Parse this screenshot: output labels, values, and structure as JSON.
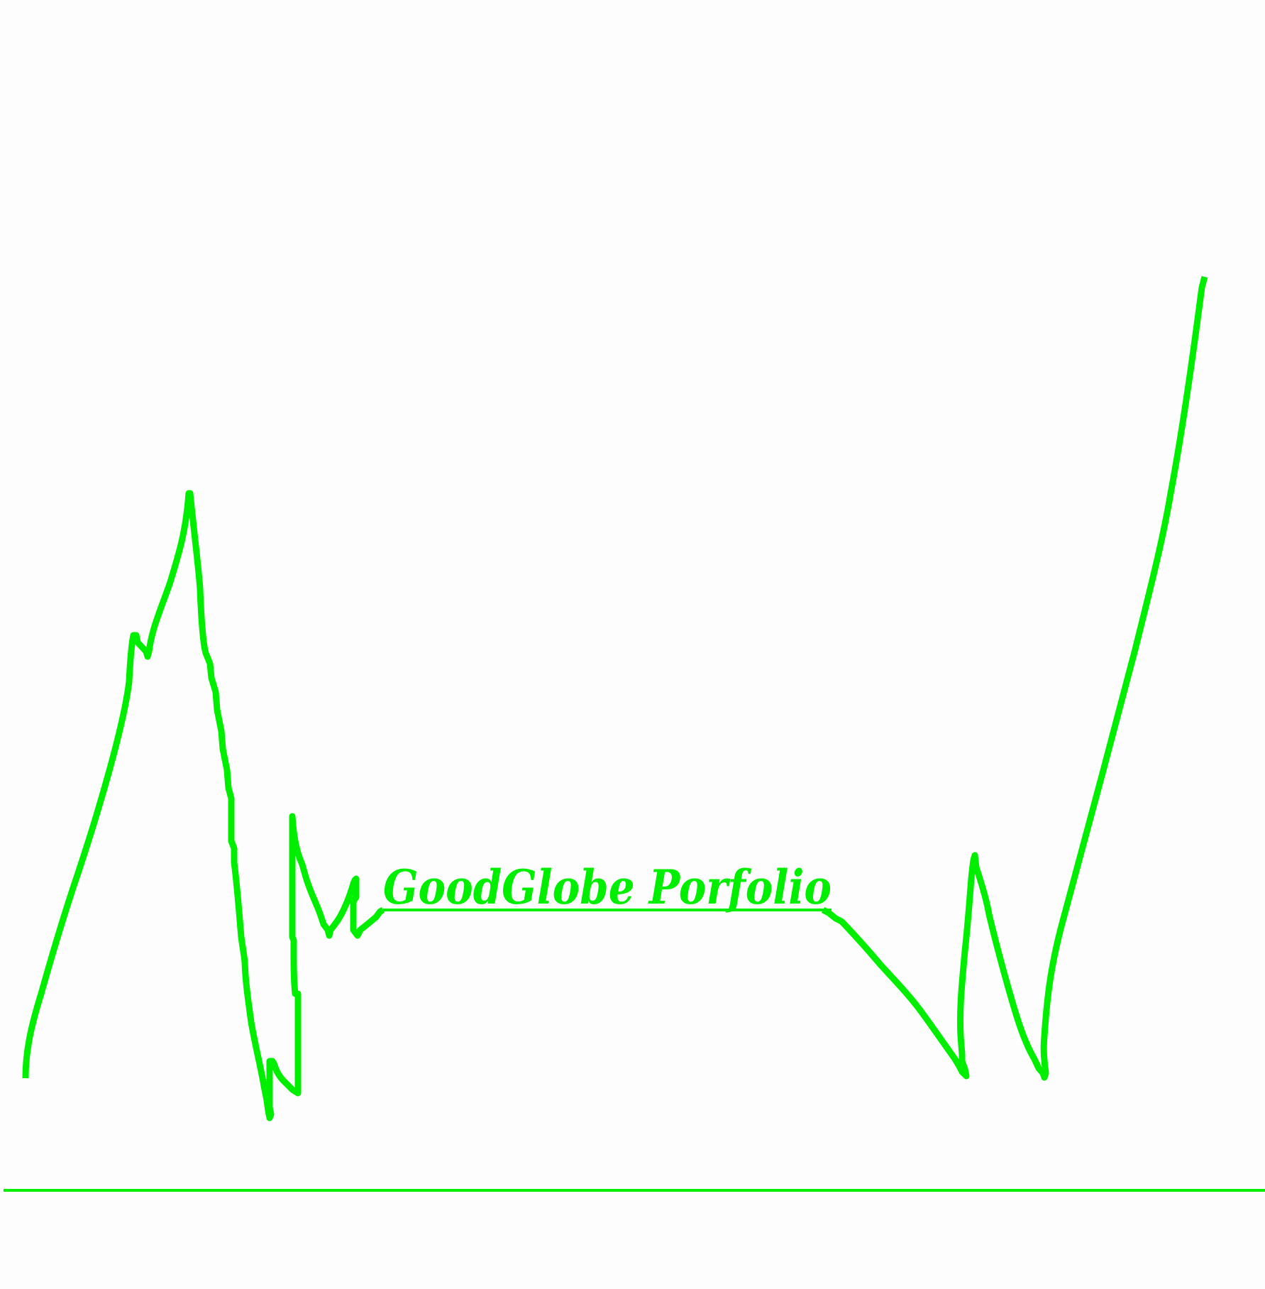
{
  "logo": {
    "title": "GoodGlobe Porfolio",
    "color": "#00ee00",
    "background": "#fdfdfd"
  }
}
